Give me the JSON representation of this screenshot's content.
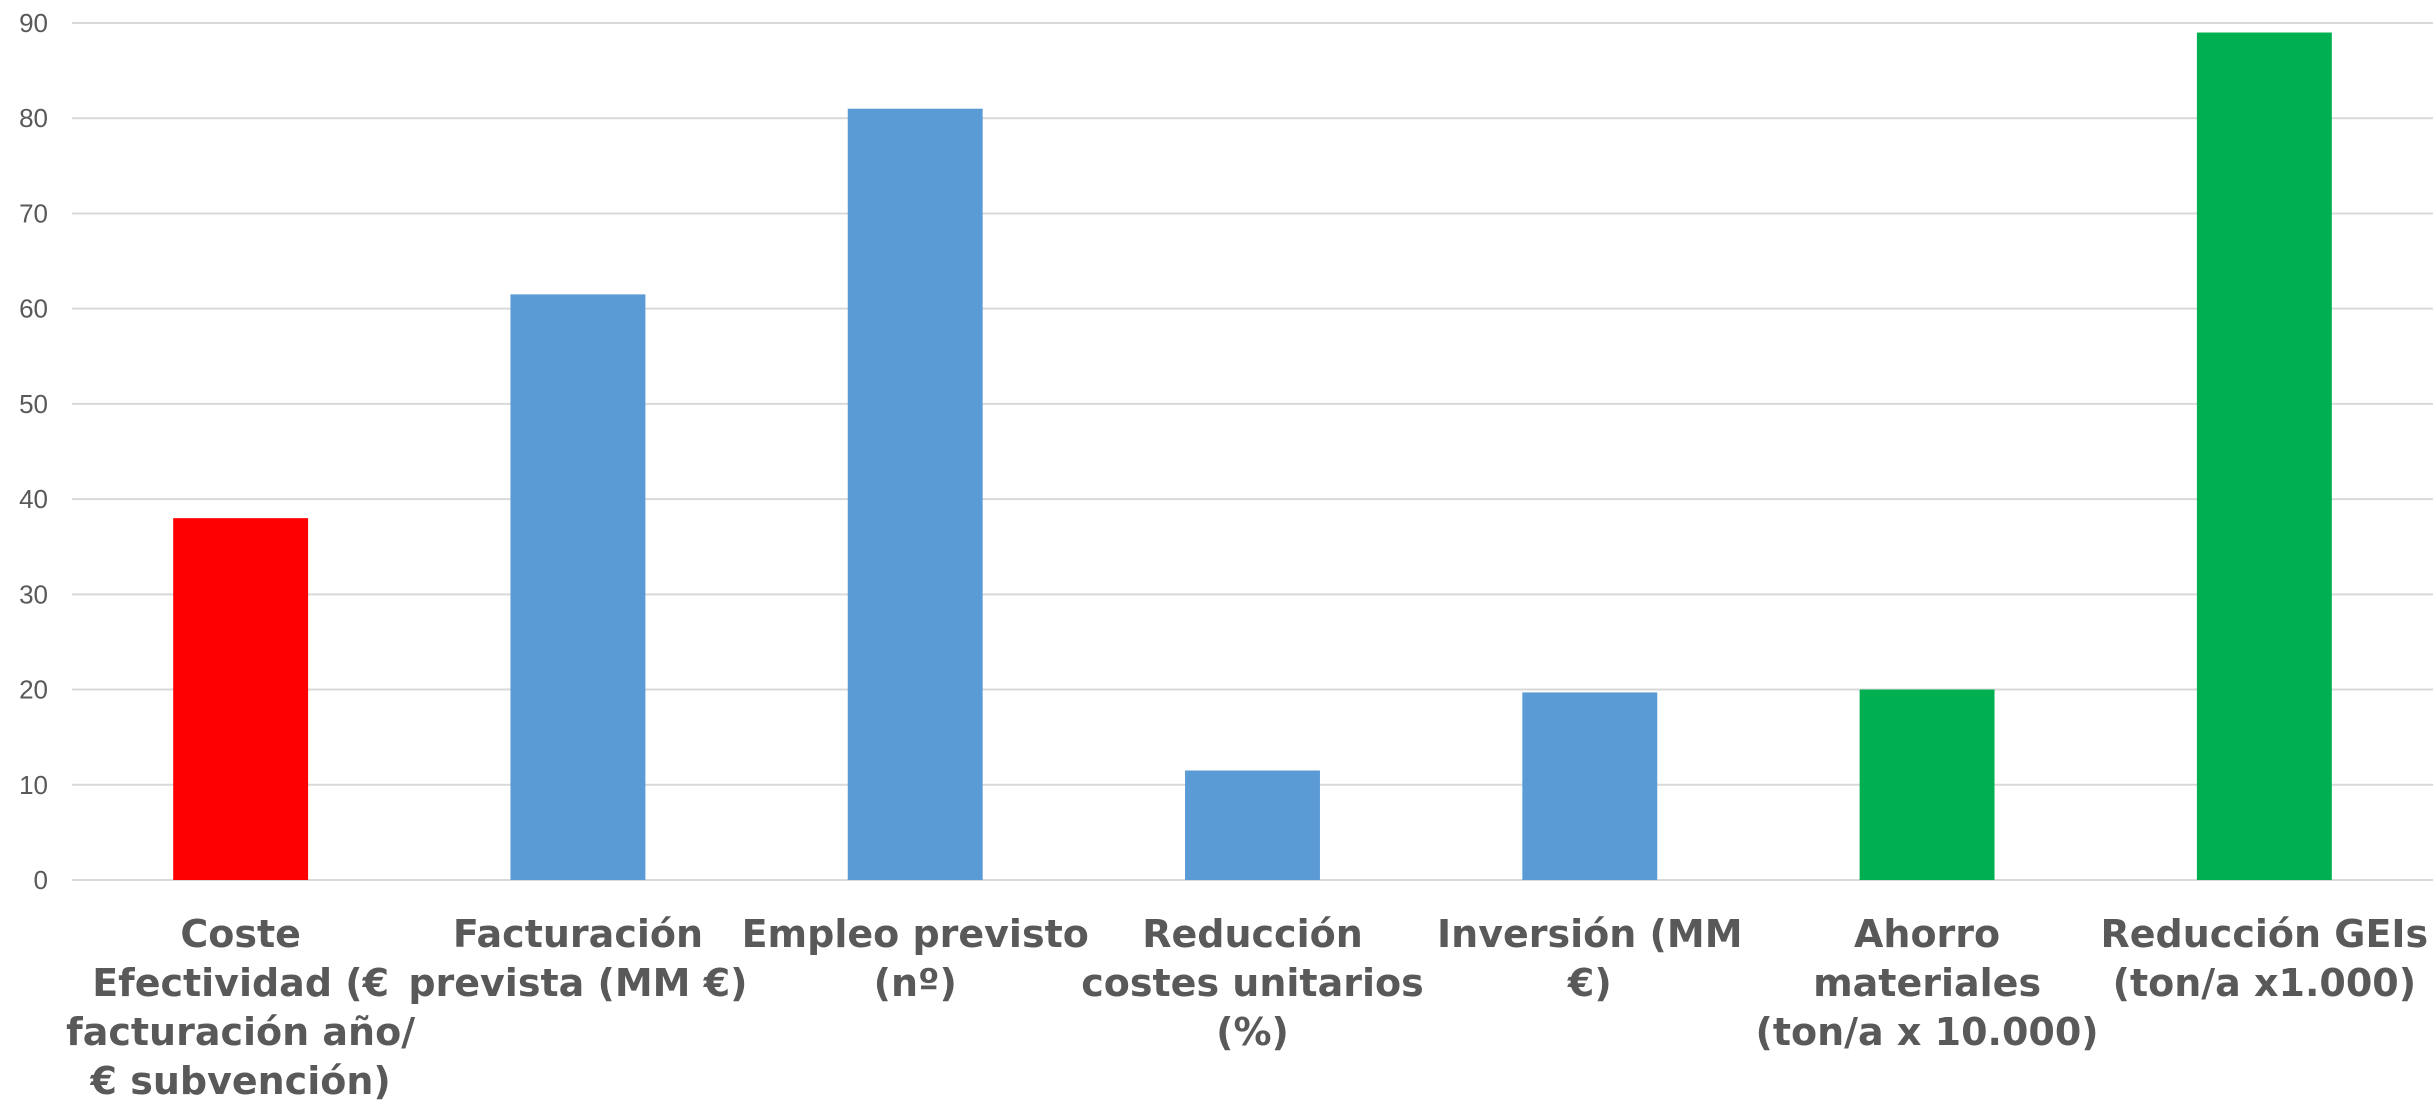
{
  "chart_data": {
    "type": "bar",
    "categories": [
      [
        "Coste",
        "Efectividad (€",
        "facturación año/",
        "€ subvención)"
      ],
      [
        "Facturación",
        "prevista (MM €)"
      ],
      [
        "Empleo previsto",
        "(nº)"
      ],
      [
        "Reducción",
        "costes unitarios",
        "(%)"
      ],
      [
        "Inversión (MM",
        "€)"
      ],
      [
        "Ahorro",
        "materiales",
        "(ton/a x 10.000)"
      ],
      [
        "Reducción GEIs",
        "(ton/a x1.000)"
      ]
    ],
    "values": [
      38,
      61.5,
      81,
      11.5,
      19.7,
      20,
      89
    ],
    "colors": [
      "#ff0000",
      "#5b9bd5",
      "#5b9bd5",
      "#5b9bd5",
      "#5b9bd5",
      "#00b050",
      "#00b050"
    ],
    "ylim": [
      0,
      90
    ],
    "yticks": [
      0,
      10,
      20,
      30,
      40,
      50,
      60,
      70,
      80,
      90
    ],
    "title": "",
    "xlabel": "",
    "ylabel": "",
    "grid": true,
    "legend": "none"
  }
}
